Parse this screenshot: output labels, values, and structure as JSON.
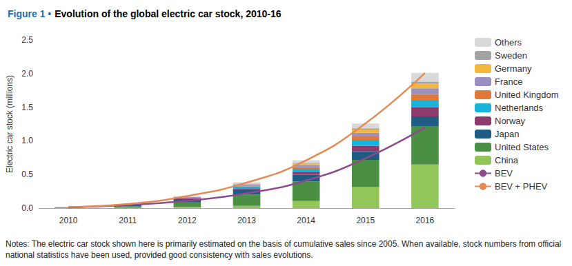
{
  "chart_data": {
    "type": "bar",
    "title": "Figure 1 • Evolution of the global electric car stock, 2010-16",
    "y_label": "Electric car stock (millions)",
    "notes": "Notes: The electric car stock shown here is primarily estimated on the basis of cumulative sales since 2005. When available, stock numbers from official national statistics have been used, provided good consistency with sales evolutions.",
    "categories": [
      "2010",
      "2011",
      "2012",
      "2013",
      "2014",
      "2015",
      "2016"
    ],
    "stacked": true,
    "grid": false,
    "legend": "right",
    "ylim": [
      0,
      2.5
    ],
    "yticks": [
      {
        "value": 0,
        "label": "0.0"
      },
      0.5,
      {
        "value": 1,
        "label": "1.0"
      },
      1.5,
      {
        "value": 2,
        "label": "2.0"
      },
      2.5
    ],
    "series": [
      {
        "name": "China",
        "color": "#92c55a",
        "values": [
          0.0016,
          0.0065,
          0.0169,
          0.0322,
          0.1054,
          0.3128,
          0.6488
        ]
      },
      {
        "name": "United States",
        "color": "#4b8f45",
        "values": [
          0.0038,
          0.0215,
          0.0747,
          0.1712,
          0.2902,
          0.4041,
          0.5637
        ]
      },
      {
        "name": "Japan",
        "color": "#1f5c85",
        "values": [
          0.0031,
          0.0161,
          0.0406,
          0.0695,
          0.1007,
          0.1264,
          0.1512
        ]
      },
      {
        "name": "Norway",
        "color": "#8c3b6c",
        "values": [
          0.0034,
          0.0054,
          0.0107,
          0.0214,
          0.0434,
          0.0842,
          0.1333
        ]
      },
      {
        "name": "Netherlands",
        "color": "#19b2d8",
        "values": [
          0.0003,
          0.0011,
          0.0063,
          0.0287,
          0.0438,
          0.0875,
          0.112
        ]
      },
      {
        "name": "United Kingdom",
        "color": "#e07a3a",
        "values": [
          0.0011,
          0.0019,
          0.0054,
          0.0082,
          0.0241,
          0.0497,
          0.0864
        ]
      },
      {
        "name": "France",
        "color": "#9a8fc0",
        "values": [
          0.0003,
          0.0029,
          0.0093,
          0.0189,
          0.0315,
          0.0543,
          0.084
        ]
      },
      {
        "name": "Germany",
        "color": "#f1b73f",
        "values": [
          0.0003,
          0.0023,
          0.0052,
          0.0122,
          0.0249,
          0.0481,
          0.0727
        ]
      },
      {
        "name": "Sweden",
        "color": "#a3a3a3",
        "values": [
          0.0002,
          0.0002,
          0.0011,
          0.004,
          0.0105,
          0.0197,
          0.0293
        ]
      },
      {
        "name": "Others",
        "color": "#d9d9d9",
        "values": [
          0.003,
          0.004,
          0.01,
          0.019,
          0.038,
          0.07,
          0.13
        ]
      },
      {
        "name": "BEV",
        "type": "line",
        "line_style": "solid",
        "color": "#8c4b8c",
        "values": [
          0.01,
          0.045,
          0.11,
          0.22,
          0.41,
          0.74,
          1.2
        ]
      },
      {
        "name": "BEV + PHEV",
        "type": "line",
        "line_style": "solid",
        "color": "#e38b54",
        "values": [
          0.017,
          0.061,
          0.18,
          0.38,
          0.71,
          1.26,
          2.01
        ]
      }
    ]
  }
}
